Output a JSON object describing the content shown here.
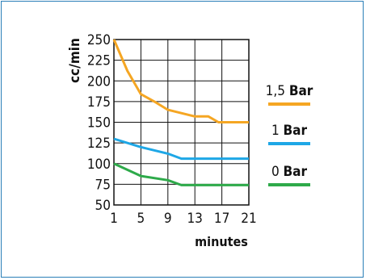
{
  "chart_data": {
    "type": "line",
    "xlabel": "minutes",
    "ylabel": "cc/min",
    "xlim": [
      1,
      21
    ],
    "ylim": [
      50,
      250
    ],
    "x_ticks": [
      1,
      5,
      9,
      13,
      17,
      21
    ],
    "y_ticks": [
      50,
      75,
      100,
      125,
      150,
      175,
      200,
      225,
      250
    ],
    "grid": true,
    "legend_position": "right",
    "series": [
      {
        "name_value": "1,5",
        "name_unit": "Bar",
        "color": "#f5a623",
        "points": [
          [
            1,
            250
          ],
          [
            3,
            212
          ],
          [
            5,
            184
          ],
          [
            7,
            175
          ],
          [
            9,
            165
          ],
          [
            11,
            161
          ],
          [
            13,
            157
          ],
          [
            15,
            157
          ],
          [
            16.5,
            150
          ],
          [
            21,
            150
          ]
        ]
      },
      {
        "name_value": "1",
        "name_unit": "Bar",
        "color": "#1ea7e6",
        "points": [
          [
            1,
            130
          ],
          [
            5,
            120
          ],
          [
            9,
            112
          ],
          [
            11,
            106
          ],
          [
            13,
            106
          ],
          [
            21,
            106
          ]
        ]
      },
      {
        "name_value": "0",
        "name_unit": "Bar",
        "color": "#2eaa4a",
        "points": [
          [
            1,
            100
          ],
          [
            5,
            85
          ],
          [
            9,
            80
          ],
          [
            11,
            74
          ],
          [
            13,
            74
          ],
          [
            21,
            74
          ]
        ]
      }
    ]
  }
}
